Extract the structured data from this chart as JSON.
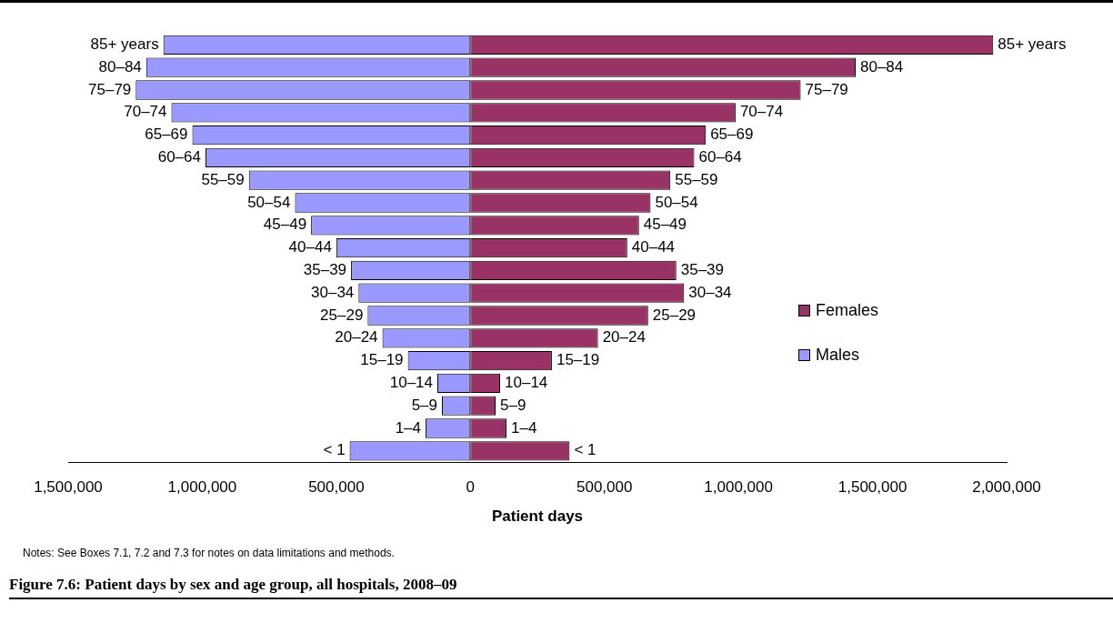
{
  "chart_data": {
    "type": "bar",
    "orientation": "horizontal",
    "stacked": true,
    "title": "Figure 7.6: Patient days by sex and age group, all hospitals, 2008–09",
    "xlabel": "Patient days",
    "annotations": [
      "Notes: See Boxes 7.1, 7.2 and 7.3 for notes on data limitations and methods."
    ],
    "categories": [
      "85+ years",
      "80–84",
      "75–79",
      "70–74",
      "65–69",
      "60–64",
      "55–59",
      "50–54",
      "45–49",
      "40–44",
      "35–39",
      "30–34",
      "25–29",
      "20–24",
      "15–19",
      "10–14",
      "5–9",
      "1–4",
      "< 1"
    ],
    "series": [
      {
        "name": "Females",
        "color": "#993366",
        "values": [
          1950000,
          1437000,
          1232000,
          989000,
          878000,
          835000,
          746000,
          672000,
          629000,
          585000,
          768000,
          797000,
          663000,
          476000,
          304000,
          111000,
          94000,
          135000,
          370000
        ]
      },
      {
        "name": "Males",
        "color": "#9999ff",
        "values": [
          -1145000,
          -1209000,
          -1248000,
          -1115000,
          -1037000,
          -988000,
          -826000,
          -654000,
          -594000,
          -500000,
          -445000,
          -417000,
          -383000,
          -328000,
          -233000,
          -123000,
          -106000,
          -167000,
          -450000
        ]
      }
    ],
    "xlim": [
      -1500000,
      2000000
    ],
    "xticks": [
      {
        "value": -1500000,
        "label": "1,500,000"
      },
      {
        "value": -1000000,
        "label": "1,000,000"
      },
      {
        "value": -500000,
        "label": "500,000"
      },
      0,
      {
        "value": 500000,
        "label": "500,000"
      },
      {
        "value": 1000000,
        "label": "1,000,000"
      },
      {
        "value": 1500000,
        "label": "1,500,000"
      },
      {
        "value": 2000000,
        "label": "2,000,000"
      }
    ],
    "grid": false,
    "legend": "right"
  }
}
